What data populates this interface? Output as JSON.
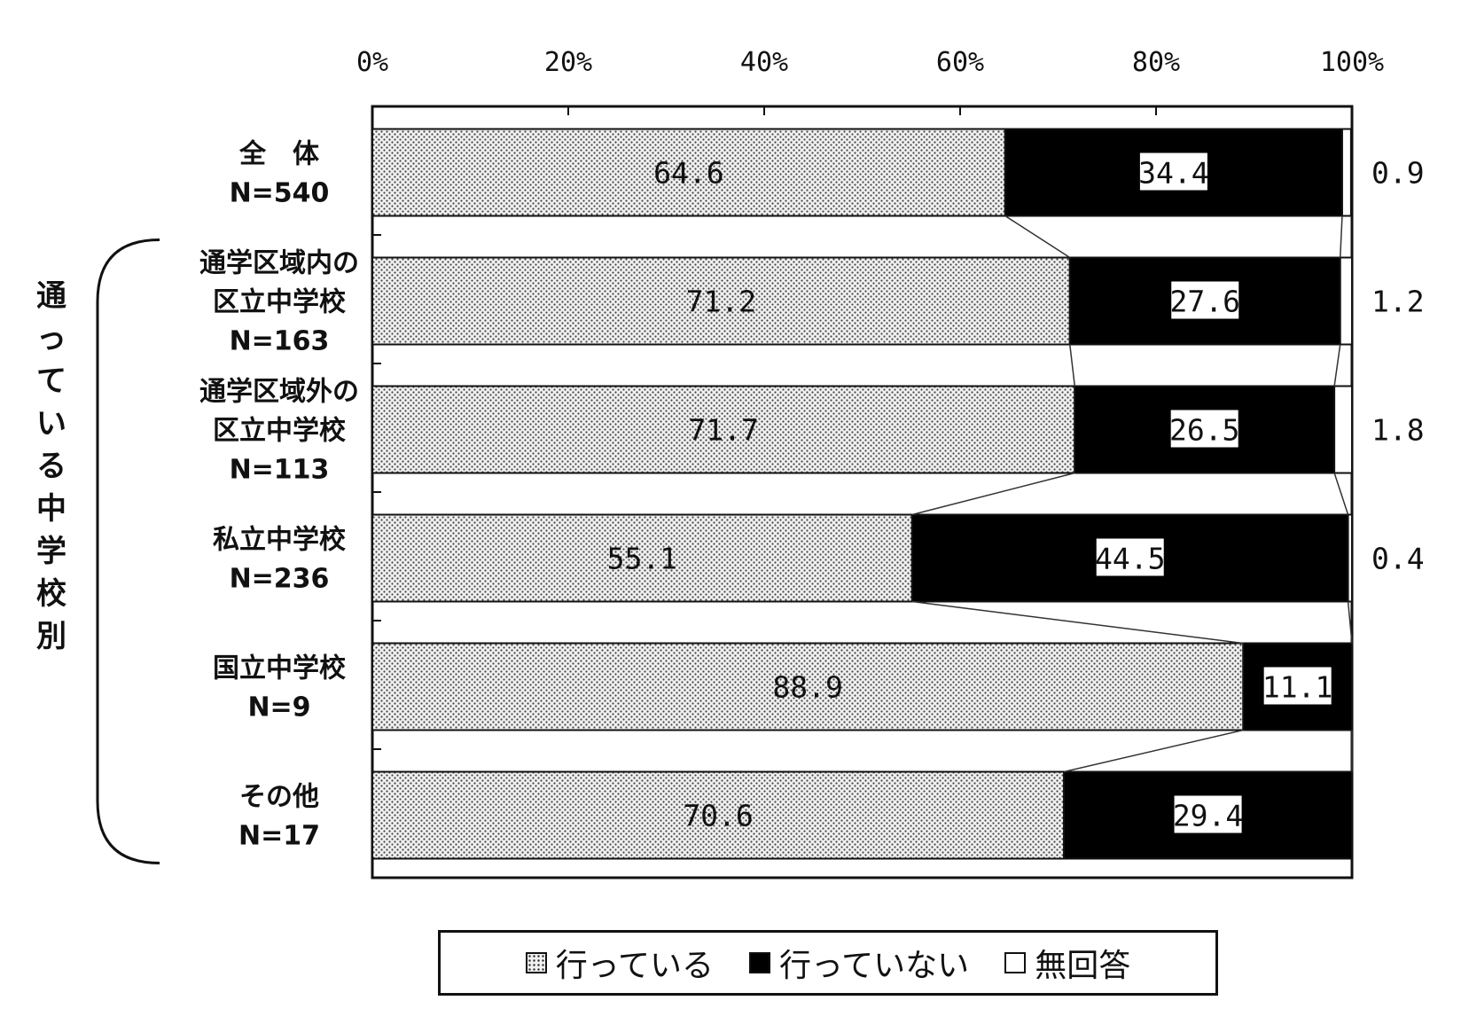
{
  "chart_data": {
    "type": "bar",
    "orientation": "horizontal",
    "stacked": true,
    "x_axis": {
      "ticks": [
        "0%",
        "20%",
        "40%",
        "60%",
        "80%",
        "100%"
      ],
      "xlim": [
        0,
        100
      ]
    },
    "group_label": "通っている中学校別",
    "categories": [
      {
        "label_lines": [
          "全　体",
          "N=540"
        ]
      },
      {
        "label_lines": [
          "通学区域内の",
          "区立中学校",
          "N=163"
        ]
      },
      {
        "label_lines": [
          "通学区域外の",
          "区立中学校",
          "N=113"
        ]
      },
      {
        "label_lines": [
          "私立中学校",
          "N=236"
        ]
      },
      {
        "label_lines": [
          "国立中学校",
          "N=9"
        ]
      },
      {
        "label_lines": [
          "その他",
          "N=17"
        ]
      }
    ],
    "series": [
      {
        "name": "行っている",
        "values": [
          64.6,
          71.2,
          71.7,
          55.1,
          88.9,
          70.6
        ],
        "labels": [
          "64.6",
          "71.2",
          "71.7",
          "55.1",
          "88.9",
          "70.6"
        ],
        "color": "#e6e6e6"
      },
      {
        "name": "行っていない",
        "values": [
          34.4,
          27.6,
          26.5,
          44.5,
          11.1,
          29.4
        ],
        "labels": [
          "34.4",
          "27.6",
          "26.5",
          "44.5",
          "11.1",
          "29.4"
        ],
        "color": "#000000"
      },
      {
        "name": "無回答",
        "values": [
          0.9,
          1.2,
          1.8,
          0.4,
          0,
          0
        ],
        "labels": [
          "0.9",
          "1.2",
          "1.8",
          "0.4",
          "",
          ""
        ],
        "color": "#ffffff"
      }
    ],
    "legend_position": "bottom",
    "grid": false
  },
  "legend": {
    "items": [
      "行っている",
      "行っていない",
      "無回答"
    ]
  }
}
